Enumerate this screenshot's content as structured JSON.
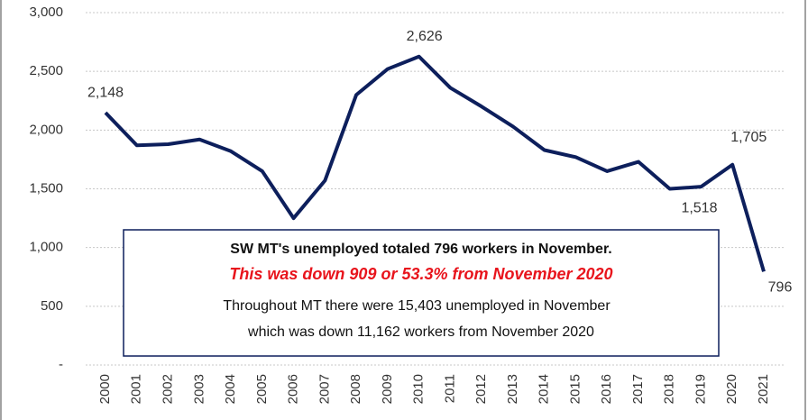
{
  "chart_data": {
    "type": "line",
    "categories": [
      "2000",
      "2001",
      "2002",
      "2003",
      "2004",
      "2005",
      "2006",
      "2007",
      "2008",
      "2009",
      "2010",
      "2011",
      "2012",
      "2013",
      "2014",
      "2015",
      "2016",
      "2017",
      "2018",
      "2019",
      "2020",
      "2021"
    ],
    "series": [
      {
        "name": "SW MT unemployed",
        "color": "#0d1f5c",
        "values": [
          2148,
          1870,
          1880,
          1920,
          1820,
          1650,
          1250,
          1570,
          2300,
          2520,
          2626,
          2360,
          2200,
          2030,
          1830,
          1770,
          1650,
          1730,
          1500,
          1518,
          1705,
          796
        ],
        "value_labels": [
          "2,148",
          null,
          null,
          null,
          null,
          null,
          null,
          null,
          null,
          null,
          "2,626",
          null,
          null,
          null,
          null,
          null,
          null,
          null,
          null,
          "1,518",
          "1,705",
          "796"
        ]
      }
    ],
    "ylim": [
      0,
      3000
    ],
    "yticks": [
      {
        "value": 0,
        "label": "-"
      },
      500,
      {
        "value": 1000,
        "label": "1,000"
      },
      {
        "value": 1500,
        "label": "1,500"
      },
      {
        "value": 2000,
        "label": "2,000"
      },
      {
        "value": 2500,
        "label": "2,500"
      },
      {
        "value": 3000,
        "label": "3,000"
      }
    ],
    "grid": true,
    "annotation": [
      "SW MT's unemployed totaled 796 workers in November.",
      "This was down 909  or 53.3% from November 2020",
      "Throughout MT there were  15,403 unemployed  in November",
      "which was down 11,162 workers from November  2020"
    ]
  }
}
